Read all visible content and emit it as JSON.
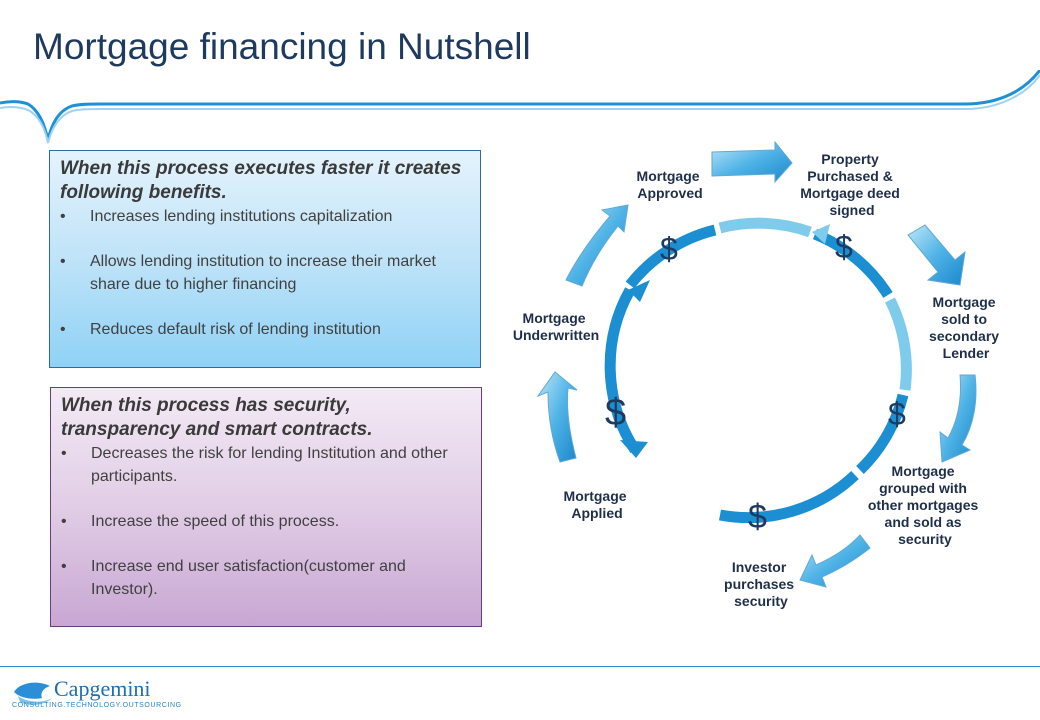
{
  "title": "Mortgage financing in Nutshell",
  "benefits_box": {
    "heading": "When this process executes faster it creates following benefits.",
    "items": [
      "Increases lending institutions capitalization",
      "Allows lending institution to increase their market share due to higher financing",
      "Reduces default risk of lending institution"
    ]
  },
  "security_box": {
    "heading": "When this process has security, transparency and smart contracts.",
    "items": [
      "Decreases the risk for lending Institution and other participants.",
      "Increase the speed of this process.",
      "Increase end user satisfaction(customer and Investor)."
    ]
  },
  "bullet_char": "•",
  "cycle": {
    "steps": [
      [
        "Mortgage",
        "Approved"
      ],
      [
        "Property",
        "Purchased &",
        "Mortgage deed",
        "signed"
      ],
      [
        "Mortgage",
        "sold to",
        "secondary",
        "Lender"
      ],
      [
        "Mortgage",
        "grouped with",
        "other mortgages",
        "and sold as",
        "security"
      ],
      [
        "Investor",
        "purchases",
        "security"
      ],
      [
        "Mortgage",
        "Applied"
      ],
      [
        "Mortgage",
        "Underwritten"
      ]
    ],
    "currency_symbol": "$"
  },
  "logo": {
    "name": "Capgemini",
    "tagline": "CONSULTING.TECHNOLOGY.OUTSOURCING"
  },
  "colors": {
    "title": "#1f3a5f",
    "accent_blue": "#1b8fd2",
    "light_blue": "#7fc8ea",
    "purple": "#6b3d7a"
  }
}
